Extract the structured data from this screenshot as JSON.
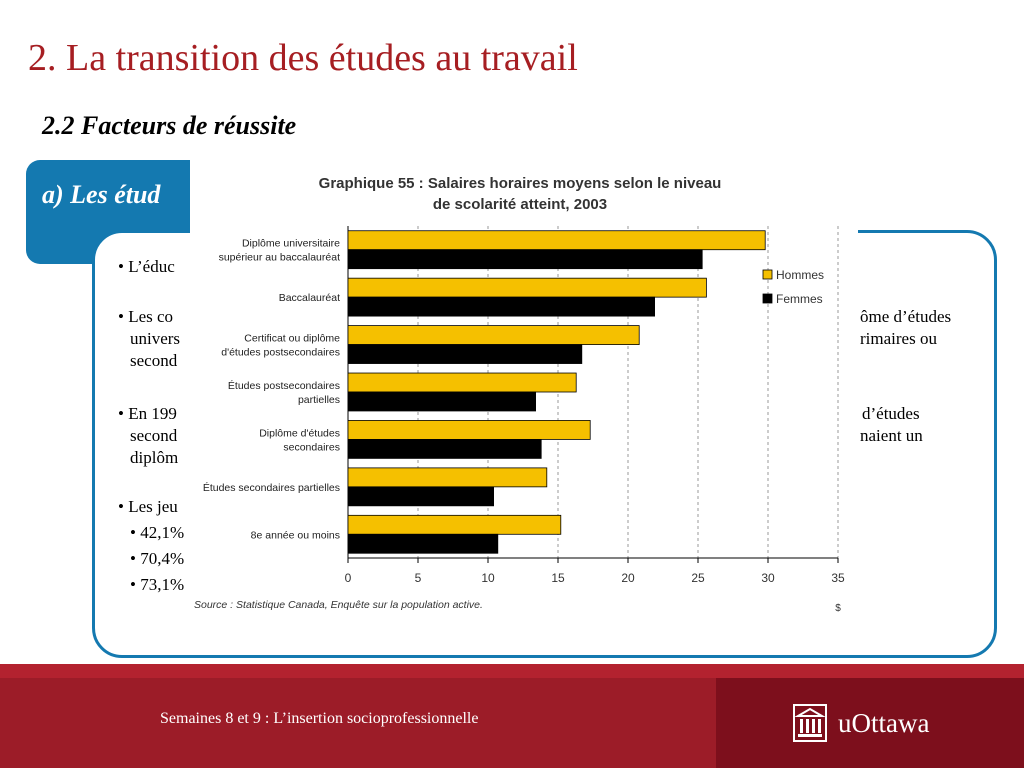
{
  "slide": {
    "title": "2. La transition des études au travail",
    "subtitle": "2.2 Facteurs de réussite",
    "section_header": "a) Les étud"
  },
  "body": {
    "bullet1": "• L’éduc",
    "bullet2_l1_left": "• Les co",
    "bullet2_l1_right": "ôme d’études",
    "bullet2_l2_left": "univers",
    "bullet2_l2_right": "rimaires ou",
    "bullet2_l3_left": "second",
    "bullet3_l1_left": "• En 199",
    "bullet3_l1_right": "d’études",
    "bullet3_l2_left": "second",
    "bullet3_l2_right": "naient un",
    "bullet3_l3_left": "diplôm",
    "bullet4": "• Les jeu",
    "sub1": "• 42,1%",
    "sub2": "• 70,4%",
    "sub3": "• 73,1%"
  },
  "footer": {
    "text": "Semaines 8 et 9 : L’insertion socioprofessionnelle",
    "logo_text": "uOttawa",
    "logo_icon": "building-icon"
  },
  "colors": {
    "title": "#a61e22",
    "accent_blue": "#1479b0",
    "hommes": "#f5c000",
    "femmes": "#000000",
    "footer": "#9c1c28"
  },
  "chart_data": {
    "type": "bar",
    "orientation": "horizontal",
    "title": "Graphique 55 : Salaires horaires moyens selon le niveau de scolarité atteint, 2003",
    "categories": [
      [
        "Diplôme universitaire",
        "supérieur au baccalauréat"
      ],
      [
        "Baccalauréat"
      ],
      [
        "Certificat ou diplôme",
        "d'études postsecondaires"
      ],
      [
        "Études postsecondaires",
        "partielles"
      ],
      [
        "Diplôme d'études",
        "secondaires"
      ],
      [
        "Études secondaires partielles"
      ],
      [
        "8e année ou moins"
      ]
    ],
    "series": [
      {
        "name": "Hommes",
        "color": "#f5c000",
        "values": [
          29.8,
          25.6,
          20.8,
          16.3,
          17.3,
          14.2,
          15.2
        ]
      },
      {
        "name": "Femmes",
        "color": "#000000",
        "values": [
          25.3,
          21.9,
          16.7,
          13.4,
          13.8,
          10.4,
          10.7
        ]
      }
    ],
    "xlabel": "$",
    "xlim": [
      0,
      35
    ],
    "xticks": [
      0,
      5,
      10,
      15,
      20,
      25,
      30,
      35
    ],
    "grid": true,
    "legend_position": "right",
    "source": "Source : Statistique Canada, Enquête sur la population active."
  }
}
